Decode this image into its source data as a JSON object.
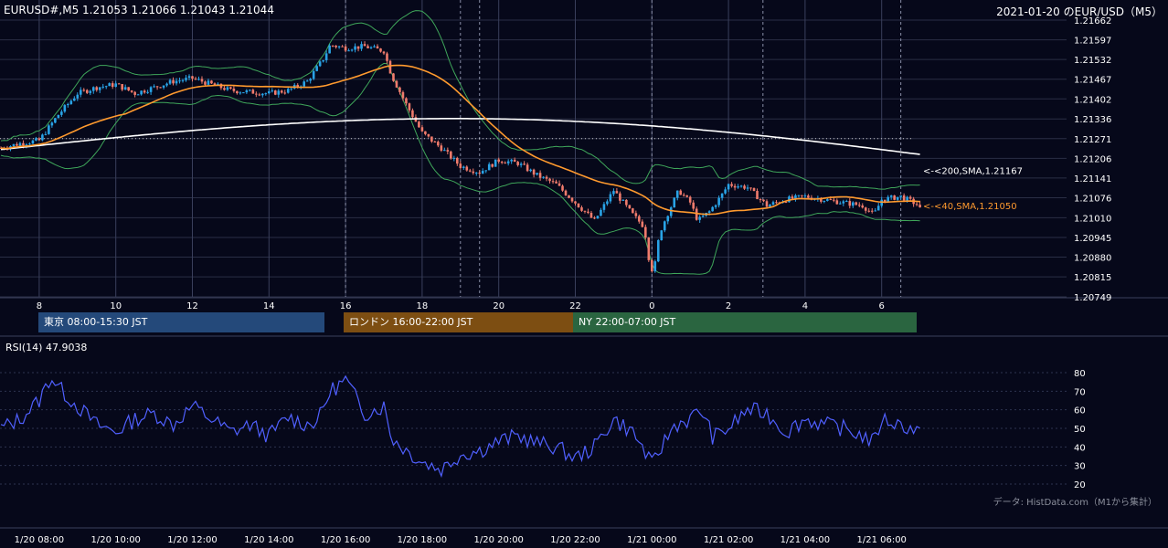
{
  "header": {
    "symbol_line": "EURUSD#,M5  1.21053 1.21066 1.21043 1.21044",
    "title": "2021-01-20 のEUR/USD（M5）"
  },
  "colors": {
    "background": "#06081a",
    "candle_up": "#29a3e6",
    "candle_down": "#f07b6c",
    "sma40": "#ff9a2e",
    "sma200": "#ffffff",
    "bollinger": "#3fa65a",
    "rsi_line": "#5060ff",
    "grid": "#2a2e45"
  },
  "sessions": [
    {
      "label": "東京 08:00-15:30 JST",
      "color": "#24497a"
    },
    {
      "label": "ロンドン 16:00-22:00 JST",
      "color": "#7d4e12"
    },
    {
      "label": "NY 22:00-07:00 JST",
      "color": "#2a6540"
    }
  ],
  "rsi": {
    "label": "RSI(14) 47.9038",
    "period": 14,
    "last_value": 47.9038,
    "ticks": [
      80,
      70,
      60,
      50,
      40,
      30,
      20
    ]
  },
  "credit": "データ: HistData.com（M1から集計）",
  "chart_data": {
    "type": "candlestick",
    "symbol": "EURUSD#",
    "timeframe": "M5",
    "last_bar": {
      "open": 1.21053,
      "high": 1.21066,
      "low": 1.21043,
      "close": 1.21044
    },
    "ylim": [
      1.20749,
      1.21662
    ],
    "y_ticks": [
      "1.21662",
      "1.21597",
      "1.21532",
      "1.21467",
      "1.21402",
      "1.21336",
      "1.21271",
      "1.21206",
      "1.21141",
      "1.21076",
      "1.21010",
      "1.20945",
      "1.20880",
      "1.20815",
      "1.20749"
    ],
    "x_hour_ticks": [
      "8",
      "10",
      "12",
      "14",
      "16",
      "18",
      "20",
      "22",
      "0",
      "2",
      "4",
      "6"
    ],
    "x_date_ticks": [
      "1/20 08:00",
      "1/20 10:00",
      "1/20 12:00",
      "1/20 14:00",
      "1/20 16:00",
      "1/20 18:00",
      "1/20 20:00",
      "1/20 22:00",
      "1/21 00:00",
      "1/21 02:00",
      "1/21 04:00",
      "1/21 06:00"
    ],
    "reference_level": 1.21271,
    "ma_labels": [
      {
        "text": "<-<200,SMA,1.21167",
        "value": 1.21167
      },
      {
        "text": "<-<40,SMA,1.21050",
        "value": 1.2105
      }
    ],
    "price_path": {
      "hours": [
        7,
        7.5,
        8,
        8.5,
        9,
        9.5,
        10,
        10.5,
        11,
        11.5,
        12,
        12.5,
        13,
        13.5,
        14,
        14.5,
        15,
        15.4,
        15.6,
        16,
        16.5,
        17,
        17.2,
        17.6,
        18,
        18.5,
        19,
        19.5,
        20,
        20.5,
        21,
        21.5,
        22,
        22.5,
        23,
        23.5,
        23.8,
        23.95,
        24.05,
        24.2,
        24.4,
        24.7,
        25,
        25.2,
        25.5,
        25.8,
        26,
        26.5,
        27,
        27.5,
        28,
        28.5,
        29,
        29.5,
        29.8,
        30,
        30.5,
        31
      ],
      "close": [
        1.2124,
        1.21255,
        1.21265,
        1.2135,
        1.2142,
        1.2144,
        1.2145,
        1.2142,
        1.2144,
        1.2146,
        1.2147,
        1.2145,
        1.2143,
        1.21425,
        1.2142,
        1.2143,
        1.2146,
        1.2153,
        1.2158,
        1.2157,
        1.21575,
        1.2156,
        1.2148,
        1.2138,
        1.2129,
        1.2124,
        1.2118,
        1.2116,
        1.212,
        1.2119,
        1.2115,
        1.2112,
        1.2106,
        1.21,
        1.211,
        1.2102,
        1.2098,
        1.2085,
        1.2083,
        1.2096,
        1.2102,
        1.211,
        1.2106,
        1.21,
        1.2103,
        1.2108,
        1.2112,
        1.2111,
        1.2105,
        1.2107,
        1.2108,
        1.2107,
        1.2106,
        1.2105,
        1.2102,
        1.2107,
        1.2108,
        1.2105
      ]
    },
    "rsi_path": {
      "hours": [
        7,
        7.5,
        8,
        8.3,
        8.6,
        9,
        9.5,
        10,
        10.5,
        11,
        11.5,
        12,
        12.5,
        13,
        13.5,
        14,
        14.5,
        15,
        15.3,
        15.6,
        16,
        16.5,
        17,
        17.2,
        17.6,
        18,
        18.5,
        19,
        19.5,
        20,
        20.5,
        21,
        21.5,
        22,
        22.5,
        23,
        23.5,
        23.8,
        24,
        24.3,
        24.6,
        25,
        25.3,
        25.6,
        26,
        26.5,
        27,
        27.5,
        28,
        28.5,
        29,
        29.5,
        29.8,
        30,
        30.5,
        31
      ],
      "values": [
        50,
        55,
        65,
        78,
        70,
        62,
        52,
        48,
        55,
        58,
        52,
        62,
        55,
        48,
        52,
        46,
        56,
        52,
        55,
        70,
        76,
        58,
        62,
        45,
        38,
        32,
        28,
        36,
        38,
        43,
        46,
        42,
        40,
        34,
        40,
        55,
        48,
        38,
        30,
        42,
        52,
        55,
        60,
        45,
        50,
        60,
        58,
        48,
        55,
        52,
        50,
        46,
        42,
        55,
        52,
        48
      ]
    }
  }
}
